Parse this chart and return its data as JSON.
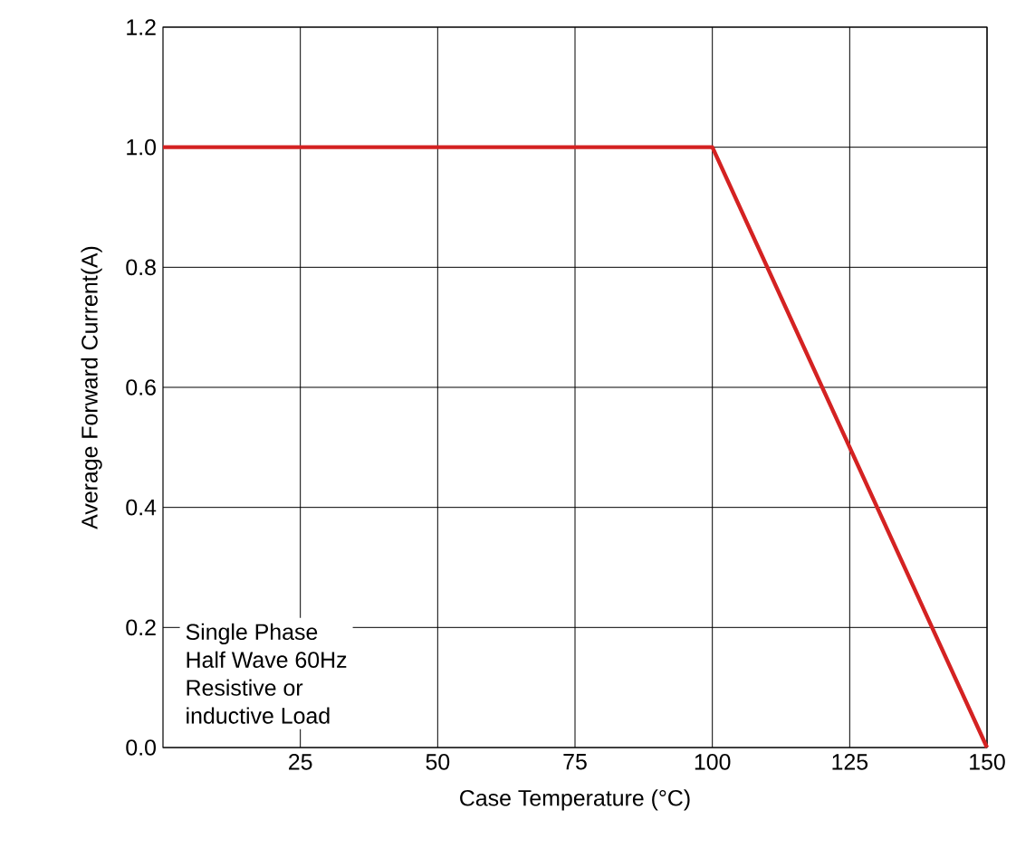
{
  "chart_data": {
    "type": "line",
    "xlabel": "Case Temperature (°C)",
    "ylabel": "Average Forward Current(A)",
    "x": [
      0,
      100,
      150
    ],
    "series": [
      {
        "color": "#d42222",
        "values": [
          1.0,
          1.0,
          0.0
        ]
      }
    ],
    "xlim": [
      0,
      150
    ],
    "xticks": [
      25,
      50,
      75,
      100,
      125,
      150
    ],
    "ylim": [
      0,
      1.2
    ],
    "yticks": [
      {
        "value": 0,
        "label": "0.0"
      },
      {
        "value": 0.2,
        "label": "0.2"
      },
      {
        "value": 0.4,
        "label": "0.4"
      },
      {
        "value": 0.6,
        "label": "0.6"
      },
      {
        "value": 0.8,
        "label": "0.8"
      },
      {
        "value": 1.0,
        "label": "1.0"
      },
      {
        "value": 1.2,
        "label": "1.2"
      }
    ],
    "grid": true,
    "marker": "none",
    "line_style": "solid",
    "annotations": [
      "Single Phase",
      "Half Wave 60Hz",
      "Resistive or",
      "inductive Load"
    ]
  }
}
